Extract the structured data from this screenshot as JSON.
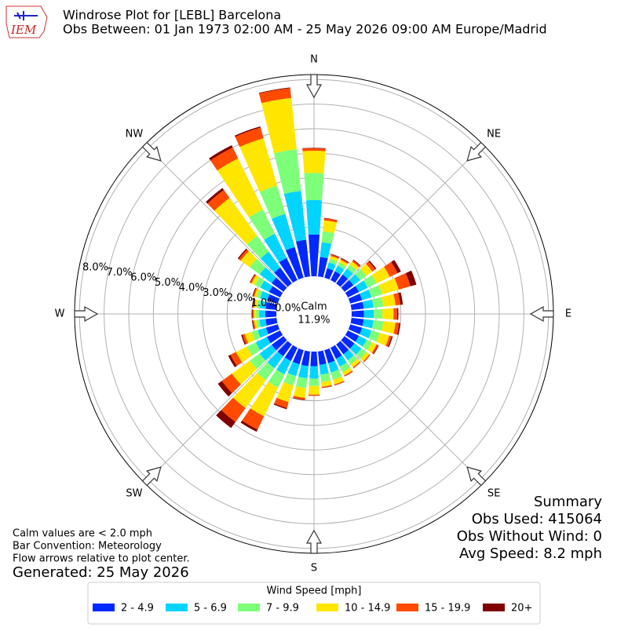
{
  "chart_data": {
    "type": "windrose",
    "title": "Windrose Plot for [LEBL] Barcelona",
    "subtitle": "Obs Between: 01 Jan 1973 02:00 AM - 25 May 2026 09:00 AM Europe/Madrid",
    "logo_text": "IEM",
    "compass": [
      "N",
      "NE",
      "E",
      "SE",
      "S",
      "SW",
      "W",
      "NW"
    ],
    "calm_label": "Calm",
    "calm_value": "11.9%",
    "x": [
      0,
      10,
      20,
      30,
      40,
      50,
      60,
      70,
      80,
      90,
      100,
      110,
      120,
      130,
      140,
      150,
      160,
      170,
      180,
      190,
      200,
      210,
      220,
      230,
      240,
      250,
      260,
      270,
      280,
      290,
      300,
      310,
      320,
      330,
      340,
      350
    ],
    "rlim": [
      0,
      8.2
    ],
    "rticks": [
      {
        "value": 0,
        "label": "0.0%"
      },
      {
        "value": 1,
        "label": "1.0%"
      },
      {
        "value": 2,
        "label": "2.0%"
      },
      {
        "value": 3,
        "label": "3.0%"
      },
      {
        "value": 4,
        "label": "4.0%"
      },
      {
        "value": 5,
        "label": "5.0%"
      },
      {
        "value": 6,
        "label": "6.0%"
      },
      {
        "value": 7,
        "label": "7.0%"
      },
      {
        "value": 8,
        "label": "8.0%"
      }
    ],
    "grid": true,
    "legend_title": "Wind Speed [mph]",
    "series": [
      {
        "name": "2 - 4.9",
        "color": "#0028ff",
        "values": [
          1.7,
          0.8,
          0.4,
          0.4,
          0.45,
          0.45,
          0.5,
          0.5,
          0.5,
          0.5,
          0.5,
          0.5,
          0.5,
          0.5,
          0.5,
          0.5,
          0.55,
          0.55,
          0.6,
          0.6,
          0.6,
          0.6,
          0.6,
          0.6,
          0.6,
          0.5,
          0.45,
          0.45,
          0.45,
          0.45,
          0.5,
          0.6,
          0.8,
          1.0,
          1.3,
          1.5
        ]
      },
      {
        "name": "5 - 6.9",
        "color": "#00d4ff",
        "values": [
          1.4,
          0.6,
          0.25,
          0.25,
          0.3,
          0.35,
          0.4,
          0.4,
          0.4,
          0.4,
          0.4,
          0.4,
          0.35,
          0.35,
          0.3,
          0.35,
          0.4,
          0.4,
          0.5,
          0.5,
          0.5,
          0.6,
          0.6,
          0.6,
          0.5,
          0.35,
          0.25,
          0.25,
          0.25,
          0.3,
          0.4,
          0.6,
          0.8,
          1.1,
          1.4,
          2.0
        ]
      },
      {
        "name": "7 - 9.9",
        "color": "#7dff7a",
        "values": [
          1.1,
          0.45,
          0.15,
          0.15,
          0.2,
          0.3,
          0.4,
          0.45,
          0.4,
          0.35,
          0.4,
          0.35,
          0.25,
          0.25,
          0.2,
          0.25,
          0.3,
          0.3,
          0.3,
          0.4,
          0.4,
          0.6,
          0.6,
          0.5,
          0.4,
          0.25,
          0.12,
          0.12,
          0.12,
          0.15,
          0.25,
          0.5,
          0.8,
          1.1,
          1.2,
          1.7
        ]
      },
      {
        "name": "10 - 14.9",
        "color": "#ffe600",
        "values": [
          0.9,
          0.45,
          0.12,
          0.12,
          0.15,
          0.3,
          0.6,
          0.7,
          0.5,
          0.45,
          0.5,
          0.4,
          0.2,
          0.15,
          0.15,
          0.15,
          0.2,
          0.2,
          0.35,
          0.4,
          0.7,
          1.3,
          1.4,
          0.9,
          0.5,
          0.3,
          0.1,
          0.1,
          0.1,
          0.1,
          0.15,
          0.45,
          1.9,
          2.3,
          2.0,
          2.1
        ]
      },
      {
        "name": "15 - 19.9",
        "color": "#ff4a00",
        "values": [
          0.1,
          0.08,
          0.06,
          0.05,
          0.07,
          0.15,
          0.35,
          0.5,
          0.2,
          0.15,
          0.15,
          0.1,
          0.07,
          0.04,
          0.04,
          0.04,
          0.04,
          0.04,
          0.04,
          0.08,
          0.25,
          0.6,
          0.7,
          0.5,
          0.25,
          0.1,
          0.05,
          0.05,
          0.05,
          0.05,
          0.05,
          0.1,
          0.4,
          0.5,
          0.45,
          0.4
        ]
      },
      {
        "name": "20+",
        "color": "#800000",
        "values": [
          0.02,
          0.02,
          0.02,
          0.03,
          0.03,
          0.05,
          0.15,
          0.25,
          0.1,
          0.05,
          0.05,
          0.05,
          0.03,
          0.01,
          0.01,
          0.01,
          0.01,
          0.01,
          0.01,
          0.02,
          0.05,
          0.1,
          0.3,
          0.2,
          0.1,
          0.05,
          0.03,
          0.03,
          0.03,
          0.03,
          0.03,
          0.05,
          0.1,
          0.1,
          0.05,
          0.03
        ]
      }
    ],
    "notes": [
      "Calm values are < 2.0 mph",
      "Bar Convention: Meteorology",
      "Flow arrows relative to plot center."
    ],
    "generated": "Generated: 25 May 2026",
    "summary": [
      "Summary",
      "Obs Used: 415064",
      "Obs Without Wind: 0",
      "Avg Speed: 8.2 mph"
    ]
  }
}
